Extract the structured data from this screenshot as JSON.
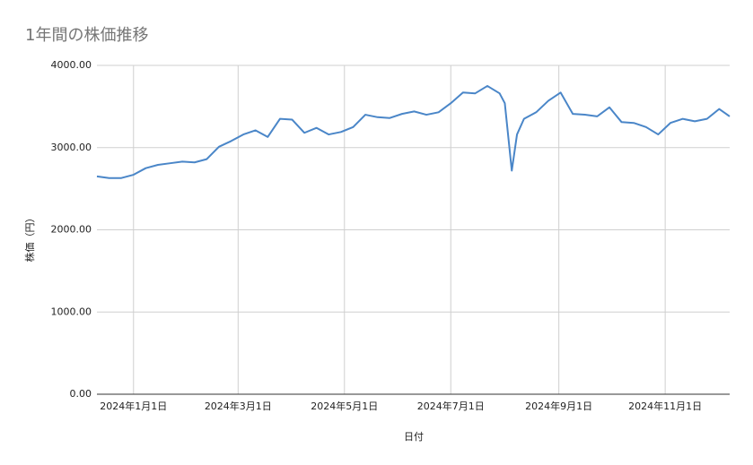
{
  "chart_data": {
    "type": "line",
    "title": "1年間の株価推移",
    "x_label": "日付",
    "y_label": "株価（円）",
    "x": [
      "2023-12-11",
      "2023-12-18",
      "2023-12-25",
      "2024-01-01",
      "2024-01-08",
      "2024-01-15",
      "2024-01-22",
      "2024-01-29",
      "2024-02-05",
      "2024-02-12",
      "2024-02-19",
      "2024-02-26",
      "2024-03-04",
      "2024-03-11",
      "2024-03-18",
      "2024-03-25",
      "2024-04-01",
      "2024-04-08",
      "2024-04-15",
      "2024-04-22",
      "2024-04-29",
      "2024-05-06",
      "2024-05-13",
      "2024-05-20",
      "2024-05-27",
      "2024-06-03",
      "2024-06-10",
      "2024-06-17",
      "2024-06-24",
      "2024-07-01",
      "2024-07-08",
      "2024-07-15",
      "2024-07-22",
      "2024-07-29",
      "2024-08-01",
      "2024-08-05",
      "2024-08-08",
      "2024-08-12",
      "2024-08-19",
      "2024-08-26",
      "2024-09-02",
      "2024-09-09",
      "2024-09-16",
      "2024-09-23",
      "2024-09-30",
      "2024-10-07",
      "2024-10-14",
      "2024-10-21",
      "2024-10-28",
      "2024-11-04",
      "2024-11-11",
      "2024-11-18",
      "2024-11-25",
      "2024-12-02",
      "2024-12-08"
    ],
    "series": [
      {
        "name": "株価",
        "color": "#4a86c8",
        "values": [
          2650,
          2630,
          2630,
          2670,
          2750,
          2790,
          2810,
          2830,
          2820,
          2860,
          3010,
          3080,
          3160,
          3210,
          3130,
          3350,
          3340,
          3180,
          3240,
          3160,
          3190,
          3250,
          3400,
          3370,
          3360,
          3410,
          3440,
          3400,
          3430,
          3540,
          3670,
          3660,
          3750,
          3660,
          3540,
          2720,
          3160,
          3350,
          3430,
          3570,
          3670,
          3410,
          3400,
          3380,
          3490,
          3310,
          3300,
          3250,
          3160,
          3300,
          3350,
          3320,
          3350,
          3470,
          3380
        ]
      }
    ],
    "xlim": [
      "2023-12-11",
      "2024-12-08"
    ],
    "xticks": [
      {
        "value": "2024-01-01",
        "label": "2024年1月1日"
      },
      {
        "value": "2024-03-01",
        "label": "2024年3月1日"
      },
      {
        "value": "2024-05-01",
        "label": "2024年5月1日"
      },
      {
        "value": "2024-07-01",
        "label": "2024年7月1日"
      },
      {
        "value": "2024-09-01",
        "label": "2024年9月1日"
      },
      {
        "value": "2024-11-01",
        "label": "2024年11月1日"
      }
    ],
    "ylim": [
      0,
      4000
    ],
    "yticks": [
      {
        "value": 0,
        "label": "0.00"
      },
      {
        "value": 1000,
        "label": "1000.00"
      },
      {
        "value": 2000,
        "label": "2000.00"
      },
      {
        "value": 3000,
        "label": "3000.00"
      },
      {
        "value": 4000,
        "label": "4000.00"
      }
    ],
    "grid": true
  }
}
